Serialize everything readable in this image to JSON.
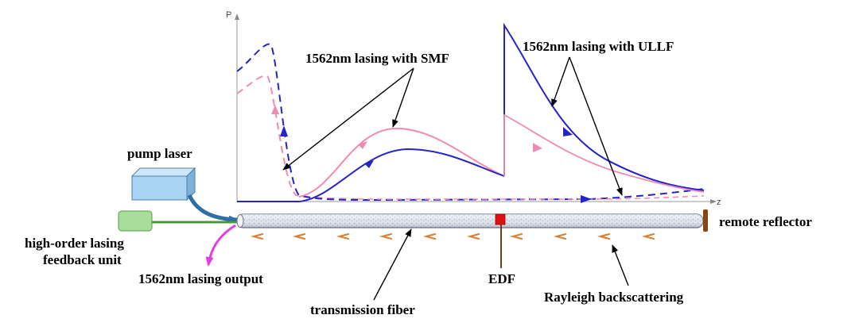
{
  "axes": {
    "y_label": "P",
    "x_label": "z"
  },
  "labels": {
    "smf": "1562nm lasing with SMF",
    "ullf": "1562nm lasing with ULLF",
    "pump_laser": "pump laser",
    "feedback_line1": "high-order lasing",
    "feedback_line2": "feedback unit",
    "output": "1562nm lasing output",
    "transmission_fiber": "transmission fiber",
    "edf": "EDF",
    "rayleigh": "Rayleigh backscattering",
    "remote_reflector": "remote reflector"
  },
  "colors": {
    "blue_curve": "#2424c8",
    "pink_curve": "#f08cb4",
    "pump_box": "#a9d3f2",
    "feedback_box": "#a8dd9c",
    "output_arrow": "#e040e0",
    "edf_marker": "#e01010",
    "reflector": "#8b4513",
    "scatter_marks": "#d8803a"
  }
}
